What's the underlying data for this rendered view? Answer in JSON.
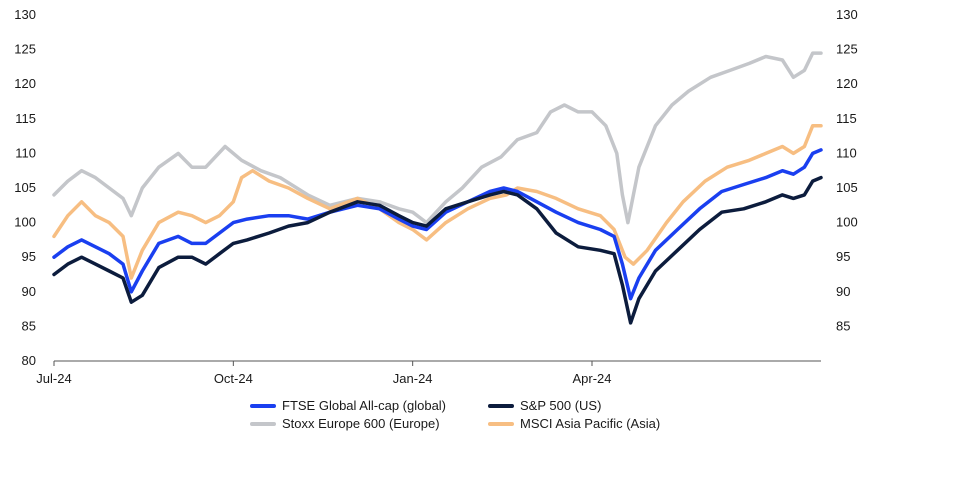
{
  "chart_data": {
    "type": "line",
    "title": "",
    "xlabel": "",
    "ylabel": "",
    "ylim": [
      80,
      130
    ],
    "yticks_left": [
      "80",
      "85",
      "90",
      "95",
      "100",
      "105",
      "110",
      "115",
      "120",
      "125",
      "130"
    ],
    "yticks_right": [
      "85",
      "90",
      "95",
      "100",
      "105",
      "110",
      "115",
      "120",
      "125",
      "130"
    ],
    "xticks": [
      "Jul-24",
      "Oct-24",
      "Jan-24",
      "Apr-24"
    ],
    "xtick_positions": [
      0,
      65,
      130,
      195
    ],
    "x_range": [
      0,
      278
    ],
    "legend_position": "bottom",
    "series": [
      {
        "name": "Stoxx Europe 600 (Europe)",
        "color": "#c4c6ca",
        "points": [
          [
            0,
            104
          ],
          [
            5,
            106
          ],
          [
            10,
            107.5
          ],
          [
            15,
            106.5
          ],
          [
            20,
            105
          ],
          [
            25,
            103.5
          ],
          [
            28,
            101
          ],
          [
            32,
            105
          ],
          [
            38,
            108
          ],
          [
            45,
            110
          ],
          [
            50,
            108
          ],
          [
            55,
            108
          ],
          [
            62,
            111
          ],
          [
            68,
            109
          ],
          [
            75,
            107.5
          ],
          [
            82,
            106.5
          ],
          [
            92,
            104
          ],
          [
            100,
            102.5
          ],
          [
            110,
            103.5
          ],
          [
            118,
            103
          ],
          [
            125,
            102
          ],
          [
            130,
            101.5
          ],
          [
            135,
            100
          ],
          [
            142,
            103
          ],
          [
            148,
            105
          ],
          [
            155,
            108
          ],
          [
            162,
            109.5
          ],
          [
            168,
            112
          ],
          [
            175,
            113
          ],
          [
            180,
            116
          ],
          [
            185,
            117
          ],
          [
            190,
            116
          ],
          [
            195,
            116
          ],
          [
            200,
            114
          ],
          [
            204,
            110
          ],
          [
            206,
            104
          ],
          [
            208,
            100
          ],
          [
            210,
            104
          ],
          [
            212,
            108
          ],
          [
            218,
            114
          ],
          [
            224,
            117
          ],
          [
            230,
            119
          ],
          [
            238,
            121
          ],
          [
            245,
            122
          ],
          [
            252,
            123
          ],
          [
            258,
            124
          ],
          [
            264,
            123.5
          ],
          [
            268,
            121
          ],
          [
            272,
            122
          ],
          [
            275,
            124.5
          ],
          [
            278,
            124.5
          ]
        ]
      },
      {
        "name": "MSCI Asia Pacific (Asia)",
        "color": "#f7be82",
        "points": [
          [
            0,
            98
          ],
          [
            5,
            101
          ],
          [
            10,
            103
          ],
          [
            15,
            101
          ],
          [
            20,
            100
          ],
          [
            25,
            98
          ],
          [
            28,
            92
          ],
          [
            32,
            96
          ],
          [
            38,
            100
          ],
          [
            45,
            101.5
          ],
          [
            50,
            101
          ],
          [
            55,
            100
          ],
          [
            60,
            101
          ],
          [
            65,
            103
          ],
          [
            68,
            106.5
          ],
          [
            72,
            107.5
          ],
          [
            78,
            106
          ],
          [
            85,
            105
          ],
          [
            92,
            103.5
          ],
          [
            100,
            102
          ],
          [
            110,
            103.5
          ],
          [
            118,
            102
          ],
          [
            125,
            100
          ],
          [
            130,
            99
          ],
          [
            135,
            97.5
          ],
          [
            142,
            100
          ],
          [
            150,
            102
          ],
          [
            158,
            103.5
          ],
          [
            164,
            104
          ],
          [
            168,
            105
          ],
          [
            175,
            104.5
          ],
          [
            182,
            103.5
          ],
          [
            190,
            102
          ],
          [
            198,
            101
          ],
          [
            203,
            99
          ],
          [
            207,
            95
          ],
          [
            210,
            94
          ],
          [
            215,
            96
          ],
          [
            222,
            100
          ],
          [
            228,
            103
          ],
          [
            236,
            106
          ],
          [
            244,
            108
          ],
          [
            252,
            109
          ],
          [
            258,
            110
          ],
          [
            264,
            111
          ],
          [
            268,
            110
          ],
          [
            272,
            111
          ],
          [
            275,
            114
          ],
          [
            278,
            114
          ]
        ]
      },
      {
        "name": "FTSE Global All-cap (global)",
        "color": "#1a3ff0",
        "points": [
          [
            0,
            95
          ],
          [
            5,
            96.5
          ],
          [
            10,
            97.5
          ],
          [
            15,
            96.5
          ],
          [
            20,
            95.5
          ],
          [
            25,
            94
          ],
          [
            28,
            90
          ],
          [
            32,
            93
          ],
          [
            38,
            97
          ],
          [
            45,
            98
          ],
          [
            50,
            97
          ],
          [
            55,
            97
          ],
          [
            60,
            98.5
          ],
          [
            65,
            100
          ],
          [
            70,
            100.5
          ],
          [
            78,
            101
          ],
          [
            85,
            101
          ],
          [
            92,
            100.5
          ],
          [
            100,
            101.5
          ],
          [
            110,
            102.5
          ],
          [
            118,
            102
          ],
          [
            125,
            100.5
          ],
          [
            130,
            99.5
          ],
          [
            135,
            99
          ],
          [
            142,
            101.5
          ],
          [
            150,
            103
          ],
          [
            158,
            104.5
          ],
          [
            163,
            105
          ],
          [
            168,
            104.5
          ],
          [
            175,
            103
          ],
          [
            182,
            101.5
          ],
          [
            190,
            100
          ],
          [
            198,
            99
          ],
          [
            203,
            98
          ],
          [
            206,
            94
          ],
          [
            209,
            89
          ],
          [
            212,
            92
          ],
          [
            218,
            96
          ],
          [
            226,
            99
          ],
          [
            234,
            102
          ],
          [
            242,
            104.5
          ],
          [
            250,
            105.5
          ],
          [
            258,
            106.5
          ],
          [
            264,
            107.5
          ],
          [
            268,
            107
          ],
          [
            272,
            108
          ],
          [
            275,
            110
          ],
          [
            278,
            110.5
          ]
        ]
      },
      {
        "name": "S&P 500 (US)",
        "color": "#0c1c3d",
        "points": [
          [
            0,
            92.5
          ],
          [
            5,
            94
          ],
          [
            10,
            95
          ],
          [
            15,
            94
          ],
          [
            20,
            93
          ],
          [
            25,
            92
          ],
          [
            28,
            88.5
          ],
          [
            32,
            89.5
          ],
          [
            38,
            93.5
          ],
          [
            45,
            95
          ],
          [
            50,
            95
          ],
          [
            55,
            94
          ],
          [
            60,
            95.5
          ],
          [
            65,
            97
          ],
          [
            70,
            97.5
          ],
          [
            78,
            98.5
          ],
          [
            85,
            99.5
          ],
          [
            92,
            100
          ],
          [
            100,
            101.5
          ],
          [
            110,
            103
          ],
          [
            118,
            102.5
          ],
          [
            125,
            101
          ],
          [
            130,
            100
          ],
          [
            135,
            99.5
          ],
          [
            142,
            102
          ],
          [
            150,
            103
          ],
          [
            158,
            104
          ],
          [
            163,
            104.5
          ],
          [
            168,
            104
          ],
          [
            175,
            102
          ],
          [
            182,
            98.5
          ],
          [
            190,
            96.5
          ],
          [
            198,
            96
          ],
          [
            203,
            95.5
          ],
          [
            206,
            91
          ],
          [
            209,
            85.5
          ],
          [
            212,
            89
          ],
          [
            218,
            93
          ],
          [
            226,
            96
          ],
          [
            234,
            99
          ],
          [
            242,
            101.5
          ],
          [
            250,
            102
          ],
          [
            258,
            103
          ],
          [
            264,
            104
          ],
          [
            268,
            103.5
          ],
          [
            272,
            104
          ],
          [
            275,
            106
          ],
          [
            278,
            106.5
          ]
        ]
      }
    ]
  }
}
